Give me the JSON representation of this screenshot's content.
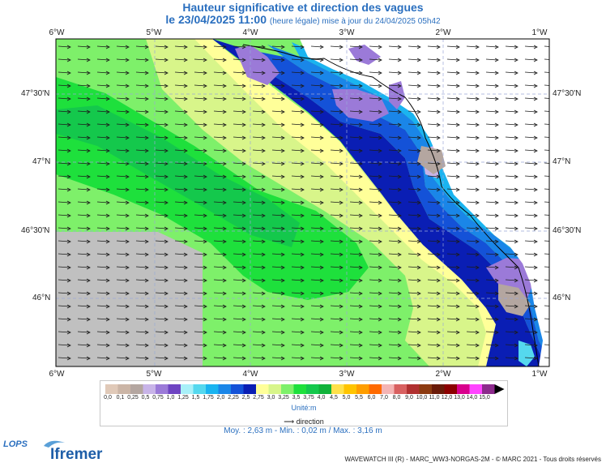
{
  "title_line1": "Hauteur significative et direction des vagues",
  "title_line2_main": "le 23/04/2025 11:00",
  "title_line2_small": "(heure légale) mise à jour du 24/04/2025 05h42",
  "lon_labels": [
    "6°W",
    "5°W",
    "4°W",
    "3°W",
    "2°W",
    "1°W"
  ],
  "lat_labels": [
    "47°30'N",
    "47°N",
    "46°30'N",
    "46°N"
  ],
  "legend": {
    "ticks": [
      "0,0",
      "0,1",
      "0,25",
      "0,5",
      "0,75",
      "1,0",
      "1,25",
      "1,5",
      "1,75",
      "2,0",
      "2,25",
      "2,5",
      "2,75",
      "3,0",
      "3,25",
      "3,5",
      "3,75",
      "4,0",
      "4,5",
      "5,0",
      "5,5",
      "6,0",
      "7,0",
      "8,0",
      "9,0",
      "10,0",
      "11,0",
      "12,0",
      "13,0",
      "14,0",
      "15,0"
    ],
    "colors": [
      "#e0c9b8",
      "#cbb5a6",
      "#b4a6a0",
      "#c8b4e8",
      "#9b7ad8",
      "#6e44c2",
      "#a8f0f8",
      "#55d8ee",
      "#1ab4f0",
      "#1a86e8",
      "#1452d8",
      "#0a1eb4",
      "#ffff99",
      "#d8f58a",
      "#7ef06a",
      "#1ee03c",
      "#14c84c",
      "#10b23a",
      "#ffe14a",
      "#ffc400",
      "#ff9e00",
      "#ff6a00",
      "#f4b4b4",
      "#d86060",
      "#b03030",
      "#8c3a10",
      "#6a1a08",
      "#8c0000",
      "#d8008c",
      "#ff44ff",
      "#8c2a8c"
    ],
    "unit": "Unité:m",
    "direction": "direction"
  },
  "stats": "Moy. : 2,63 m   -   Min. : 0,02 m / Max. : 3,16 m",
  "credits": "WAVEWATCH III (R) - MARC_WW3-NORGAS-2M - © MARC 2021 - Tous droits réservés",
  "logo_lops": "LOPS",
  "logo_ifremer": "Ifremer"
}
